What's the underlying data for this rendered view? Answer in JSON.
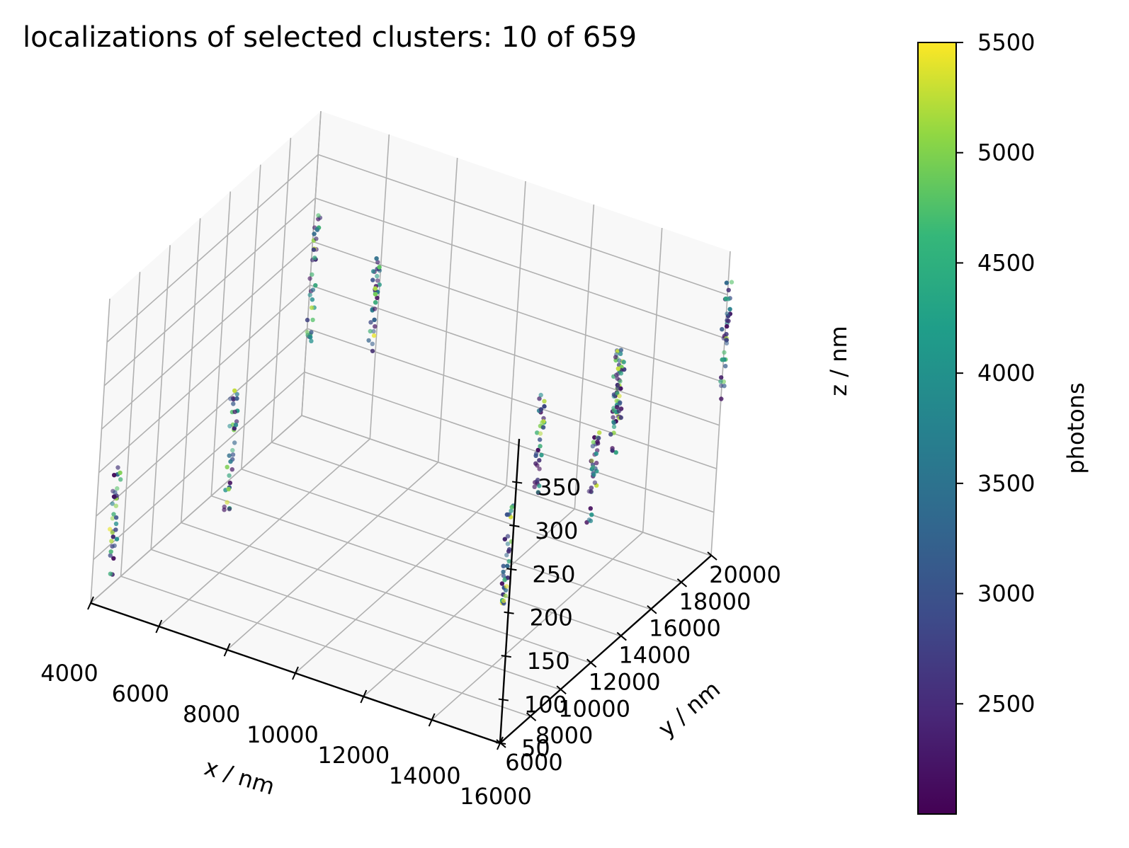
{
  "chart_data": {
    "type": "scatter",
    "projection": "3d",
    "title": "localizations of selected clusters: 10 of 659",
    "xlabel": "x / nm",
    "ylabel": "y / nm",
    "zlabel": "z / nm",
    "colorbar_label": "photons",
    "colormap": "viridis",
    "xlim": [
      4000,
      16000
    ],
    "ylim": [
      6000,
      20000
    ],
    "zlim": [
      50,
      400
    ],
    "clim": [
      2000,
      5500
    ],
    "x_ticks": [
      "4000",
      "6000",
      "8000",
      "10000",
      "12000",
      "14000",
      "16000"
    ],
    "y_ticks": [
      "6000",
      "8000",
      "10000",
      "12000",
      "14000",
      "16000",
      "18000",
      "20000"
    ],
    "z_ticks": [
      "50",
      "100",
      "150",
      "200",
      "250",
      "300",
      "350"
    ],
    "c_ticks": [
      "2500",
      "3000",
      "3500",
      "4000",
      "4500",
      "5000",
      "5500"
    ],
    "grid": true,
    "clusters": [
      {
        "x": 3900,
        "y": 7500,
        "z_min": 60,
        "z_max": 185
      },
      {
        "x": 4900,
        "y": 13000,
        "z_min": 60,
        "z_max": 200
      },
      {
        "x": 5500,
        "y": 16500,
        "z_min": 210,
        "z_max": 360
      },
      {
        "x": 6700,
        "y": 18000,
        "z_min": 190,
        "z_max": 300
      },
      {
        "x": 11500,
        "y": 18500,
        "z_min": 80,
        "z_max": 200
      },
      {
        "x": 13500,
        "y": 17500,
        "z_min": 90,
        "z_max": 200
      },
      {
        "x": 13000,
        "y": 13000,
        "z_min": 60,
        "z_max": 180
      },
      {
        "x": 14000,
        "y": 17500,
        "z_min": 180,
        "z_max": 300
      },
      {
        "x": 14500,
        "y": 16500,
        "z_min": 230,
        "z_max": 310
      },
      {
        "x": 16000,
        "y": 20000,
        "z_min": 230,
        "z_max": 370
      }
    ]
  },
  "colors": {
    "grid": "#b0b0b0",
    "pane": "#f2f2f2",
    "axis": "#000000",
    "viridis": [
      "#440154",
      "#3b528b",
      "#21918c",
      "#5ec962",
      "#fde725"
    ]
  }
}
